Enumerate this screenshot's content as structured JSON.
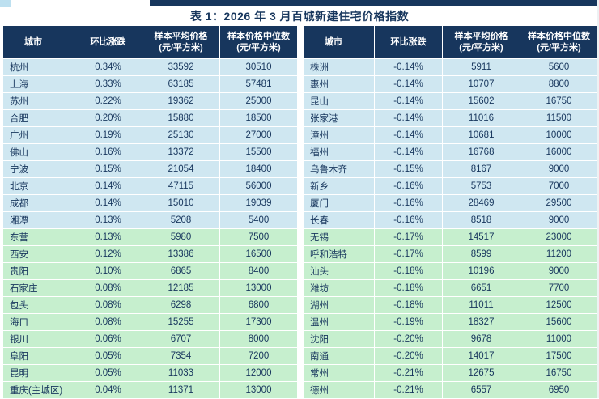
{
  "page": {
    "title": "表 1：2026 年 3 月百城新建住宅价格指数"
  },
  "colors": {
    "header_bg": "#17365D",
    "row_blue": "#CFE7F1",
    "row_green": "#C6EFCE",
    "text_color": "#17365D",
    "title_color": "#17365D"
  },
  "headers": {
    "city": "城市",
    "change": "环比涨跌",
    "avg_price_line1": "样本平均价格",
    "avg_price_line2": "(元/平方米)",
    "median_price_line1": "样本价格中位数",
    "median_price_line2": "(元/平方米)"
  },
  "left_table": {
    "rows": [
      {
        "city": "杭州",
        "change": "0.34%",
        "avg": "33592",
        "median": "30510",
        "tone": "blue"
      },
      {
        "city": "上海",
        "change": "0.33%",
        "avg": "63185",
        "median": "57481",
        "tone": "blue"
      },
      {
        "city": "苏州",
        "change": "0.22%",
        "avg": "19362",
        "median": "25000",
        "tone": "blue"
      },
      {
        "city": "合肥",
        "change": "0.20%",
        "avg": "15880",
        "median": "18500",
        "tone": "blue"
      },
      {
        "city": "广州",
        "change": "0.19%",
        "avg": "25130",
        "median": "27000",
        "tone": "blue"
      },
      {
        "city": "佛山",
        "change": "0.16%",
        "avg": "13372",
        "median": "15500",
        "tone": "blue"
      },
      {
        "city": "宁波",
        "change": "0.15%",
        "avg": "21054",
        "median": "18400",
        "tone": "blue"
      },
      {
        "city": "北京",
        "change": "0.14%",
        "avg": "47115",
        "median": "56000",
        "tone": "blue"
      },
      {
        "city": "成都",
        "change": "0.14%",
        "avg": "15010",
        "median": "19039",
        "tone": "blue"
      },
      {
        "city": "湘潭",
        "change": "0.13%",
        "avg": "5208",
        "median": "5400",
        "tone": "blue"
      },
      {
        "city": "东营",
        "change": "0.13%",
        "avg": "5980",
        "median": "7500",
        "tone": "green"
      },
      {
        "city": "西安",
        "change": "0.12%",
        "avg": "13386",
        "median": "16500",
        "tone": "green"
      },
      {
        "city": "贵阳",
        "change": "0.10%",
        "avg": "6865",
        "median": "8400",
        "tone": "green"
      },
      {
        "city": "石家庄",
        "change": "0.08%",
        "avg": "12185",
        "median": "13000",
        "tone": "green"
      },
      {
        "city": "包头",
        "change": "0.08%",
        "avg": "6298",
        "median": "6800",
        "tone": "green"
      },
      {
        "city": "海口",
        "change": "0.08%",
        "avg": "15255",
        "median": "17300",
        "tone": "green"
      },
      {
        "city": "银川",
        "change": "0.06%",
        "avg": "6707",
        "median": "8000",
        "tone": "green"
      },
      {
        "city": "阜阳",
        "change": "0.05%",
        "avg": "7354",
        "median": "7200",
        "tone": "green"
      },
      {
        "city": "昆明",
        "change": "0.05%",
        "avg": "11033",
        "median": "12000",
        "tone": "green"
      },
      {
        "city": "重庆(主城区)",
        "change": "0.04%",
        "avg": "11371",
        "median": "13000",
        "tone": "green"
      }
    ]
  },
  "right_table": {
    "rows": [
      {
        "city": "株洲",
        "change": "-0.14%",
        "avg": "5911",
        "median": "5600",
        "tone": "blue"
      },
      {
        "city": "惠州",
        "change": "-0.14%",
        "avg": "10707",
        "median": "8800",
        "tone": "blue"
      },
      {
        "city": "昆山",
        "change": "-0.14%",
        "avg": "15602",
        "median": "16750",
        "tone": "blue"
      },
      {
        "city": "张家港",
        "change": "-0.14%",
        "avg": "11016",
        "median": "11500",
        "tone": "blue"
      },
      {
        "city": "漳州",
        "change": "-0.14%",
        "avg": "10681",
        "median": "10000",
        "tone": "blue"
      },
      {
        "city": "福州",
        "change": "-0.14%",
        "avg": "16768",
        "median": "16000",
        "tone": "blue"
      },
      {
        "city": "乌鲁木齐",
        "change": "-0.15%",
        "avg": "8167",
        "median": "9000",
        "tone": "blue"
      },
      {
        "city": "新乡",
        "change": "-0.16%",
        "avg": "5753",
        "median": "7000",
        "tone": "blue"
      },
      {
        "city": "厦门",
        "change": "-0.16%",
        "avg": "28469",
        "median": "29500",
        "tone": "blue"
      },
      {
        "city": "长春",
        "change": "-0.16%",
        "avg": "8518",
        "median": "9000",
        "tone": "blue"
      },
      {
        "city": "无锡",
        "change": "-0.17%",
        "avg": "14517",
        "median": "23000",
        "tone": "green"
      },
      {
        "city": "呼和浩特",
        "change": "-0.17%",
        "avg": "8599",
        "median": "11200",
        "tone": "green"
      },
      {
        "city": "汕头",
        "change": "-0.18%",
        "avg": "10196",
        "median": "9000",
        "tone": "green"
      },
      {
        "city": "潍坊",
        "change": "-0.18%",
        "avg": "6651",
        "median": "7700",
        "tone": "green"
      },
      {
        "city": "湖州",
        "change": "-0.18%",
        "avg": "11011",
        "median": "12500",
        "tone": "green"
      },
      {
        "city": "温州",
        "change": "-0.19%",
        "avg": "18327",
        "median": "15600",
        "tone": "green"
      },
      {
        "city": "沈阳",
        "change": "-0.20%",
        "avg": "9678",
        "median": "11000",
        "tone": "green"
      },
      {
        "city": "南通",
        "change": "-0.20%",
        "avg": "14017",
        "median": "17500",
        "tone": "green"
      },
      {
        "city": "常州",
        "change": "-0.21%",
        "avg": "12675",
        "median": "16750",
        "tone": "green"
      },
      {
        "city": "德州",
        "change": "-0.21%",
        "avg": "6557",
        "median": "6950",
        "tone": "green"
      }
    ]
  }
}
